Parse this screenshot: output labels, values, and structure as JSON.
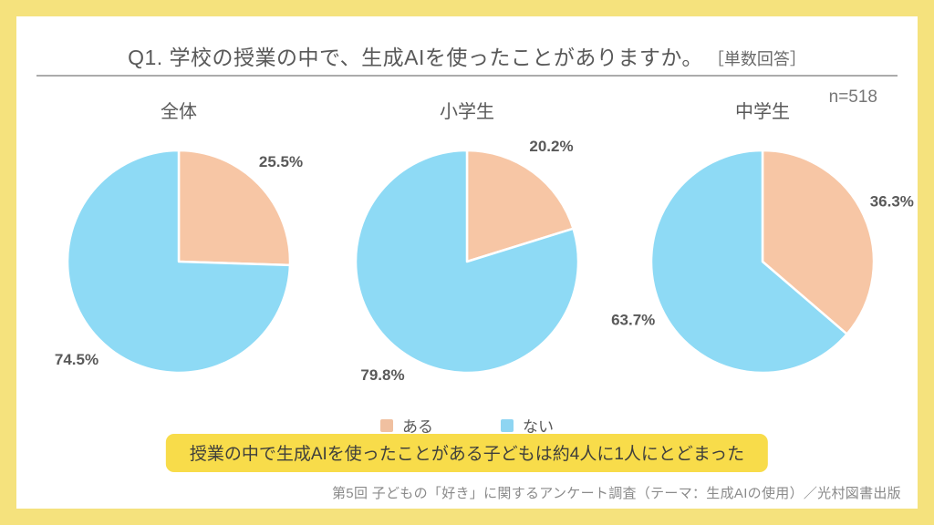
{
  "frame": {
    "border_color": "#f5e27d",
    "panel_background": "#ffffff"
  },
  "header": {
    "title": "Q1. 学校の授業の中で、生成AIを使ったことがありますか。",
    "annotation": "［単数回答］",
    "sample_size": "n=518"
  },
  "chart_data": [
    {
      "type": "pie",
      "title": "全体",
      "labels": [
        "ある",
        "ない"
      ],
      "values": [
        25.5,
        74.5
      ],
      "colors": [
        "#f7c6a5",
        "#8edaf5"
      ],
      "start_angle_deg": 0,
      "direction": "clockwise",
      "value_suffix": "%"
    },
    {
      "type": "pie",
      "title": "小学生",
      "labels": [
        "ある",
        "ない"
      ],
      "values": [
        20.2,
        79.8
      ],
      "colors": [
        "#f7c6a5",
        "#8edaf5"
      ],
      "start_angle_deg": 0,
      "direction": "clockwise",
      "value_suffix": "%"
    },
    {
      "type": "pie",
      "title": "中学生",
      "labels": [
        "ある",
        "ない"
      ],
      "values": [
        36.3,
        63.7
      ],
      "colors": [
        "#f7c6a5",
        "#8edaf5"
      ],
      "start_angle_deg": 0,
      "direction": "clockwise",
      "value_suffix": "%"
    }
  ],
  "legend": {
    "position": "bottom-center",
    "items": [
      {
        "label": "ある",
        "color": "#f0c0a0"
      },
      {
        "label": "ない",
        "color": "#8ed5f2"
      }
    ]
  },
  "callout": {
    "text": "授業の中で生成AIを使ったことがある子どもは約4人に1人にとどまった",
    "background": "#f8dc4a"
  },
  "footer": {
    "source": "第5回 子どもの「好き」に関するアンケート調査（テーマ：生成AIの使用）／光村図書出版"
  }
}
